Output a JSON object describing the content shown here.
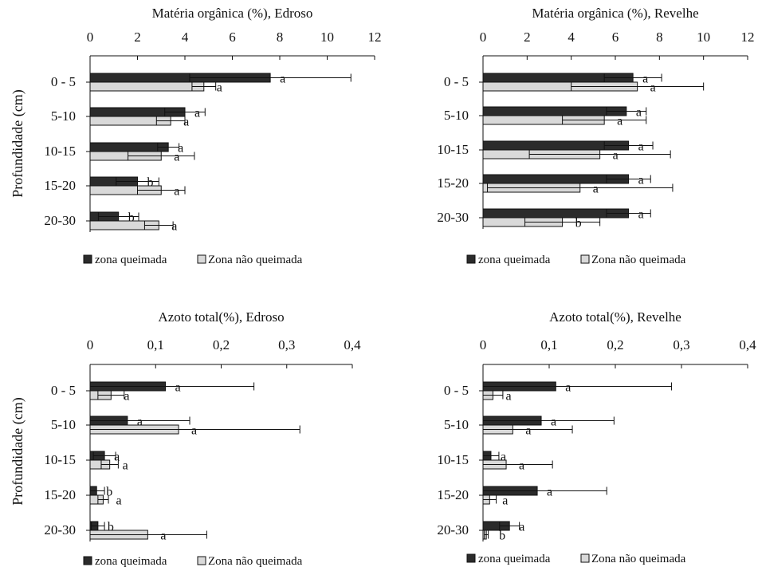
{
  "shared": {
    "ylabel": "Profundidade (cm)",
    "legend": [
      "zona queimada",
      "Zona não queimada"
    ],
    "colors": {
      "burned": "#2b2b2b",
      "unburned": "#d9d9d9"
    }
  },
  "chart_data": [
    {
      "type": "bar",
      "orientation": "horizontal",
      "title": "Matéria orgânica (%), Edroso",
      "xlim": [
        0,
        12
      ],
      "xticks": [
        "0",
        "2",
        "4",
        "6",
        "8",
        "10",
        "12"
      ],
      "categories": [
        "0 - 5",
        "5-10",
        "10-15",
        "15-20",
        "20-30"
      ],
      "series": [
        {
          "name": "zona queimada",
          "values": [
            7.6,
            4.0,
            3.3,
            2.0,
            1.2
          ],
          "errors": [
            3.4,
            0.85,
            0.45,
            0.9,
            0.85
          ],
          "letters": [
            "a",
            "a",
            "a",
            "b",
            "b"
          ]
        },
        {
          "name": "Zona não queimada",
          "values": [
            4.8,
            3.4,
            3.0,
            3.0,
            2.9
          ],
          "errors": [
            0.5,
            0.6,
            1.4,
            1.0,
            0.6
          ],
          "letters": [
            "a",
            "a",
            "a",
            "a",
            "a"
          ]
        }
      ],
      "grid": false,
      "legend_position": "bottom"
    },
    {
      "type": "bar",
      "orientation": "horizontal",
      "title": "Matéria orgânica (%), Revelhe",
      "xlim": [
        0,
        12
      ],
      "xticks": [
        "0",
        "2",
        "4",
        "6",
        "8",
        "10",
        "12"
      ],
      "categories": [
        "0 - 5",
        "5-10",
        "10-15",
        "15-20",
        "20-30"
      ],
      "series": [
        {
          "name": "zona queimada",
          "values": [
            6.8,
            6.5,
            6.6,
            6.6,
            6.6
          ],
          "errors": [
            1.3,
            0.9,
            1.1,
            1.0,
            1.0
          ],
          "letters": [
            "a",
            "a",
            "a",
            "a",
            "a"
          ]
        },
        {
          "name": "Zona não queimada",
          "values": [
            7.0,
            5.5,
            5.3,
            4.4,
            3.6
          ],
          "errors": [
            3.0,
            1.9,
            3.2,
            4.2,
            1.7
          ],
          "letters": [
            "a",
            "a",
            "a",
            "a",
            "b"
          ]
        }
      ],
      "grid": false,
      "legend_position": "bottom"
    },
    {
      "type": "bar",
      "orientation": "horizontal",
      "title": "Azoto total(%), Edroso",
      "xlim": [
        0,
        0.4
      ],
      "xticks": [
        "0",
        "0,1",
        "0,2",
        "0,3",
        "0,4"
      ],
      "categories": [
        "0 - 5",
        "5-10",
        "10-15",
        "15-20",
        "20-30"
      ],
      "series": [
        {
          "name": "zona queimada",
          "values": [
            0.115,
            0.057,
            0.022,
            0.01,
            0.012
          ],
          "errors": [
            0.135,
            0.095,
            0.017,
            0.012,
            0.01
          ],
          "letters": [
            "a",
            "a",
            "a",
            "b",
            "b"
          ]
        },
        {
          "name": "Zona não queimada",
          "values": [
            0.032,
            0.135,
            0.03,
            0.02,
            0.088
          ],
          "errors": [
            0.02,
            0.185,
            0.013,
            0.008,
            0.09
          ],
          "letters": [
            "a",
            "a",
            "a",
            "a",
            "a"
          ]
        }
      ],
      "grid": false,
      "legend_position": "bottom"
    },
    {
      "type": "bar",
      "orientation": "horizontal",
      "title": "Azoto total(%), Revelhe",
      "xlim": [
        0,
        0.4
      ],
      "xticks": [
        "0",
        "0,1",
        "0,2",
        "0,3",
        "0,4"
      ],
      "categories": [
        "0 - 5",
        "5-10",
        "10-15",
        "15-20",
        "20-30"
      ],
      "series": [
        {
          "name": "zona queimada",
          "values": [
            0.11,
            0.088,
            0.012,
            0.082,
            0.04
          ],
          "errors": [
            0.175,
            0.11,
            0.012,
            0.105,
            0.015
          ],
          "letters": [
            "a",
            "a",
            "a",
            "a",
            "a"
          ]
        },
        {
          "name": "Zona não queimada",
          "values": [
            0.015,
            0.045,
            0.035,
            0.01,
            0.005
          ],
          "errors": [
            0.015,
            0.09,
            0.07,
            0.01,
            0.003
          ],
          "letters": [
            "a",
            "a",
            "a",
            "a",
            "b"
          ]
        }
      ],
      "grid": false,
      "legend_position": "bottom"
    }
  ]
}
